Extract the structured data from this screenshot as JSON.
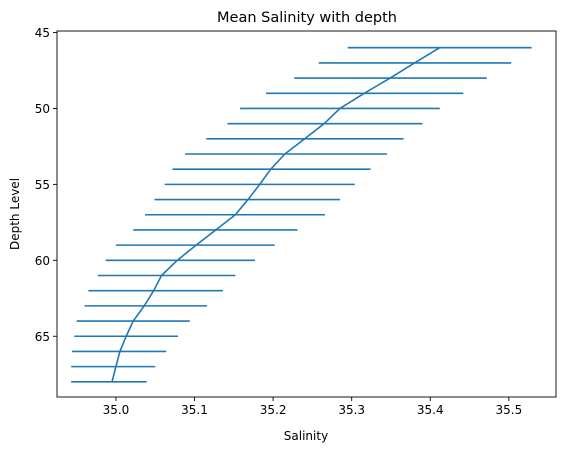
{
  "chart_data": {
    "type": "line",
    "title": "Mean Salinity with depth",
    "xlabel": "Salinity",
    "ylabel": "Depth Level",
    "xlim": [
      34.925,
      35.56
    ],
    "ylim": [
      69.0,
      44.9
    ],
    "y_inverted": true,
    "grid": false,
    "xticks": [
      35.0,
      35.1,
      35.2,
      35.3,
      35.4,
      35.5
    ],
    "xtick_labels": [
      "35.0",
      "35.1",
      "35.2",
      "35.3",
      "35.4",
      "35.5"
    ],
    "yticks": [
      45,
      50,
      55,
      60,
      65
    ],
    "ytick_labels": [
      "45",
      "50",
      "55",
      "60",
      "65"
    ],
    "color": "#1f77b4",
    "series": [
      {
        "depth": [
          46,
          47,
          48,
          49,
          50,
          51,
          52,
          53,
          54,
          55,
          56,
          57,
          58,
          59,
          60,
          61,
          62,
          63,
          64,
          65,
          66,
          67,
          68
        ],
        "mean": [
          35.412,
          35.38,
          35.349,
          35.316,
          35.285,
          35.265,
          35.24,
          35.215,
          35.197,
          35.183,
          35.168,
          35.152,
          35.127,
          35.102,
          35.078,
          35.058,
          35.048,
          35.036,
          35.022,
          35.013,
          35.005,
          35.0,
          34.995
        ],
        "xerr_lo": [
          35.295,
          35.258,
          35.227,
          35.191,
          35.158,
          35.142,
          35.115,
          35.088,
          35.072,
          35.062,
          35.049,
          35.037,
          35.022,
          35.0,
          34.987,
          34.977,
          34.965,
          34.96,
          34.95,
          34.947,
          34.944,
          34.943,
          34.943
        ],
        "xerr_hi": [
          35.529,
          35.503,
          35.472,
          35.442,
          35.412,
          35.39,
          35.366,
          35.345,
          35.324,
          35.304,
          35.285,
          35.266,
          35.231,
          35.202,
          35.177,
          35.152,
          35.136,
          35.116,
          35.094,
          35.079,
          35.064,
          35.05,
          35.039
        ]
      }
    ]
  }
}
